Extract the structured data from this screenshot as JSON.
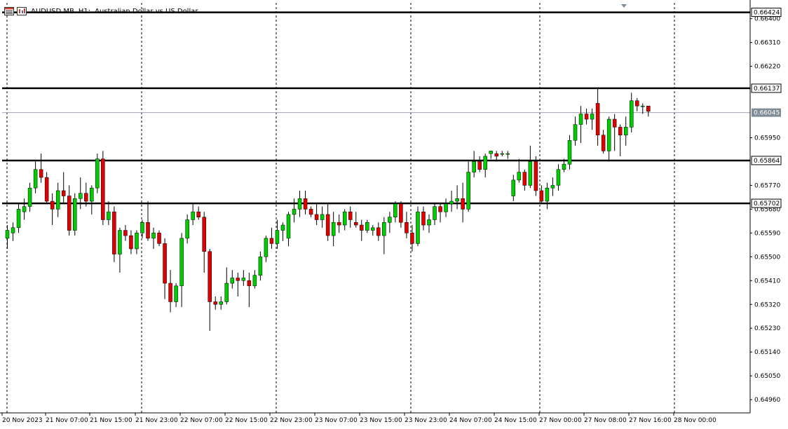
{
  "header": {
    "symbol": "AUDUSD.MB",
    "timeframe": "H1:",
    "description": "Australian Dollar vs US Dollar"
  },
  "icons": [
    "table-icon",
    "chart-icon"
  ],
  "colors": {
    "bull": "#00cc00",
    "bear": "#e00000",
    "wick": "#000000",
    "grid": "#000000",
    "current_price_line": "#a0a0b0",
    "current_price_label_bg": "#808b98",
    "background": "#ffffff"
  },
  "chart_data": {
    "type": "candlestick",
    "symbol": "AUDUSD.MB",
    "timeframe": "H1",
    "ylim": [
      0.6491,
      0.6646
    ],
    "yticks": [
      "0.66400",
      "0.66310",
      "0.66220",
      "0.65950",
      "0.65770",
      "0.65680",
      "0.65590",
      "0.65500",
      "0.65410",
      "0.65320",
      "0.65230",
      "0.65140",
      "0.65050",
      "0.64960"
    ],
    "xticks": [
      "20 Nov 2023",
      "21 Nov 07:00",
      "21 Nov 15:00",
      "21 Nov 23:00",
      "22 Nov 07:00",
      "22 Nov 15:00",
      "22 Nov 23:00",
      "23 Nov 07:00",
      "23 Nov 15:00",
      "23 Nov 23:00",
      "24 Nov 07:00",
      "24 Nov 15:00",
      "27 Nov 00:00",
      "27 Nov 08:00",
      "27 Nov 16:00",
      "28 Nov 00:00"
    ],
    "horizontal_levels": [
      "0.66424",
      "0.66137",
      "0.65864",
      "0.65702"
    ],
    "current_price": "0.66045",
    "candles": [
      [
        0.6557,
        0.6562,
        0.6553,
        0.656
      ],
      [
        0.6559,
        0.6563,
        0.6556,
        0.6561
      ],
      [
        0.6561,
        0.657,
        0.6559,
        0.6568
      ],
      [
        0.6567,
        0.6572,
        0.6564,
        0.6569
      ],
      [
        0.6569,
        0.6578,
        0.6567,
        0.6576
      ],
      [
        0.6576,
        0.6586,
        0.6574,
        0.6583
      ],
      [
        0.6583,
        0.6589,
        0.6578,
        0.658
      ],
      [
        0.658,
        0.6582,
        0.657,
        0.6571
      ],
      [
        0.6571,
        0.6574,
        0.6562,
        0.6568
      ],
      [
        0.6568,
        0.6578,
        0.6565,
        0.6575
      ],
      [
        0.6575,
        0.6582,
        0.657,
        0.6573
      ],
      [
        0.6573,
        0.6577,
        0.6558,
        0.656
      ],
      [
        0.656,
        0.6574,
        0.6558,
        0.6572
      ],
      [
        0.6572,
        0.658,
        0.6568,
        0.6574
      ],
      [
        0.6574,
        0.6578,
        0.6569,
        0.6571
      ],
      [
        0.6571,
        0.6577,
        0.6566,
        0.6576
      ],
      [
        0.6576,
        0.6589,
        0.6574,
        0.6587
      ],
      [
        0.6587,
        0.659,
        0.6562,
        0.6564
      ],
      [
        0.6564,
        0.6571,
        0.6562,
        0.6567
      ],
      [
        0.6567,
        0.6569,
        0.6548,
        0.6551
      ],
      [
        0.6551,
        0.6561,
        0.6544,
        0.656
      ],
      [
        0.656,
        0.6562,
        0.6556,
        0.6558
      ],
      [
        0.6558,
        0.656,
        0.6551,
        0.6553
      ],
      [
        0.6553,
        0.656,
        0.6551,
        0.6559
      ],
      [
        0.6559,
        0.6564,
        0.6557,
        0.6563
      ],
      [
        0.6563,
        0.6571,
        0.6556,
        0.6557
      ],
      [
        0.6557,
        0.6561,
        0.6553,
        0.6559
      ],
      [
        0.6559,
        0.656,
        0.6554,
        0.6555
      ],
      [
        0.6555,
        0.6557,
        0.6534,
        0.654
      ],
      [
        0.654,
        0.6545,
        0.6529,
        0.6533
      ],
      [
        0.6533,
        0.654,
        0.6531,
        0.6539
      ],
      [
        0.6539,
        0.6559,
        0.6531,
        0.6557
      ],
      [
        0.6557,
        0.6566,
        0.6555,
        0.6564
      ],
      [
        0.6564,
        0.657,
        0.6562,
        0.6567
      ],
      [
        0.6567,
        0.6569,
        0.6564,
        0.6565
      ],
      [
        0.6565,
        0.6567,
        0.6544,
        0.6552
      ],
      [
        0.6552,
        0.6553,
        0.6522,
        0.6533
      ],
      [
        0.6533,
        0.6535,
        0.653,
        0.6532
      ],
      [
        0.6532,
        0.6535,
        0.653,
        0.6533
      ],
      [
        0.6533,
        0.6546,
        0.6532,
        0.654
      ],
      [
        0.654,
        0.6545,
        0.6538,
        0.6542
      ],
      [
        0.6542,
        0.6544,
        0.6535,
        0.6541
      ],
      [
        0.6541,
        0.6545,
        0.6539,
        0.6542
      ],
      [
        0.6541,
        0.6544,
        0.6531,
        0.6539
      ],
      [
        0.6539,
        0.6545,
        0.6538,
        0.6543
      ],
      [
        0.6543,
        0.6552,
        0.6541,
        0.655
      ],
      [
        0.655,
        0.6558,
        0.6548,
        0.6557
      ],
      [
        0.6557,
        0.6561,
        0.6553,
        0.6555
      ],
      [
        0.6555,
        0.6564,
        0.6553,
        0.656
      ],
      [
        0.656,
        0.6563,
        0.6556,
        0.6562
      ],
      [
        0.6557,
        0.6567,
        0.6554,
        0.6566
      ],
      [
        0.6566,
        0.6572,
        0.6563,
        0.6568
      ],
      [
        0.6568,
        0.6575,
        0.6565,
        0.6572
      ],
      [
        0.6572,
        0.6575,
        0.6566,
        0.6568
      ],
      [
        0.6568,
        0.6569,
        0.6565,
        0.6566
      ],
      [
        0.6566,
        0.657,
        0.6562,
        0.6564
      ],
      [
        0.6564,
        0.6569,
        0.6561,
        0.6566
      ],
      [
        0.6566,
        0.657,
        0.6556,
        0.6558
      ],
      [
        0.6558,
        0.6567,
        0.6554,
        0.6563
      ],
      [
        0.6563,
        0.6566,
        0.6559,
        0.6562
      ],
      [
        0.6562,
        0.6568,
        0.656,
        0.6567
      ],
      [
        0.6567,
        0.6569,
        0.6561,
        0.6564
      ],
      [
        0.6563,
        0.6567,
        0.6561,
        0.6562
      ],
      [
        0.6562,
        0.6564,
        0.6556,
        0.656
      ],
      [
        0.656,
        0.6564,
        0.6559,
        0.6563
      ],
      [
        0.656,
        0.6562,
        0.6558,
        0.6561
      ],
      [
        0.6561,
        0.6563,
        0.6556,
        0.6558
      ],
      [
        0.6558,
        0.6565,
        0.6551,
        0.6563
      ],
      [
        0.6563,
        0.6567,
        0.6559,
        0.6565
      ],
      [
        0.6565,
        0.6571,
        0.6563,
        0.657
      ],
      [
        0.657,
        0.6571,
        0.6561,
        0.6563
      ],
      [
        0.6563,
        0.6567,
        0.6557,
        0.6559
      ],
      [
        0.6559,
        0.6562,
        0.6552,
        0.6555
      ],
      [
        0.6555,
        0.6569,
        0.6554,
        0.6567
      ],
      [
        0.6567,
        0.6569,
        0.656,
        0.6562
      ],
      [
        0.6562,
        0.6566,
        0.6559,
        0.6564
      ],
      [
        0.6564,
        0.657,
        0.6562,
        0.6569
      ],
      [
        0.6569,
        0.657,
        0.6563,
        0.6567
      ],
      [
        0.6567,
        0.6572,
        0.6565,
        0.657
      ],
      [
        0.657,
        0.6575,
        0.6567,
        0.6571
      ],
      [
        0.6571,
        0.6577,
        0.6568,
        0.6572
      ],
      [
        0.6572,
        0.6578,
        0.6563,
        0.6568
      ],
      [
        0.6568,
        0.6586,
        0.6567,
        0.6582
      ],
      [
        0.6582,
        0.659,
        0.658,
        0.6586
      ],
      [
        0.6586,
        0.6588,
        0.6582,
        0.6583
      ],
      [
        0.6583,
        0.6589,
        0.658,
        0.6588
      ],
      [
        0.6589,
        0.659,
        0.6587,
        0.659
      ],
      [
        0.6589,
        0.659,
        0.6586,
        0.6588
      ],
      [
        0.6589,
        0.659,
        0.6588,
        0.6589
      ],
      [
        0.6589,
        0.659,
        0.6587,
        0.6589
      ],
      [
        0.6573,
        0.6581,
        0.6571,
        0.6579
      ],
      [
        0.6579,
        0.6587,
        0.6578,
        0.6582
      ],
      [
        0.6582,
        0.6583,
        0.6575,
        0.6577
      ],
      [
        0.6577,
        0.6592,
        0.6576,
        0.6586
      ],
      [
        0.6586,
        0.6588,
        0.6573,
        0.6575
      ],
      [
        0.6575,
        0.6577,
        0.657,
        0.6571
      ],
      [
        0.6571,
        0.6578,
        0.6568,
        0.6576
      ],
      [
        0.6576,
        0.658,
        0.6573,
        0.6577
      ],
      [
        0.6577,
        0.6585,
        0.6575,
        0.6583
      ],
      [
        0.6583,
        0.6587,
        0.6582,
        0.6585
      ],
      [
        0.6585,
        0.6596,
        0.6583,
        0.6594
      ],
      [
        0.6594,
        0.6603,
        0.6592,
        0.66
      ],
      [
        0.66,
        0.6607,
        0.6593,
        0.6604
      ],
      [
        0.6604,
        0.6606,
        0.66,
        0.6602
      ],
      [
        0.6602,
        0.6606,
        0.6598,
        0.6604
      ],
      [
        0.6608,
        0.6614,
        0.6592,
        0.6596
      ],
      [
        0.6596,
        0.6598,
        0.6589,
        0.659
      ],
      [
        0.659,
        0.6603,
        0.6586,
        0.6602
      ],
      [
        0.6602,
        0.6604,
        0.659,
        0.6599
      ],
      [
        0.6599,
        0.66,
        0.6588,
        0.6596
      ],
      [
        0.6596,
        0.6603,
        0.6592,
        0.6599
      ],
      [
        0.6599,
        0.6612,
        0.6597,
        0.6609
      ],
      [
        0.6609,
        0.661,
        0.6605,
        0.6607
      ],
      [
        0.6607,
        0.6608,
        0.6604,
        0.6607
      ],
      [
        0.6607,
        0.6607,
        0.6603,
        0.6605
      ]
    ]
  }
}
